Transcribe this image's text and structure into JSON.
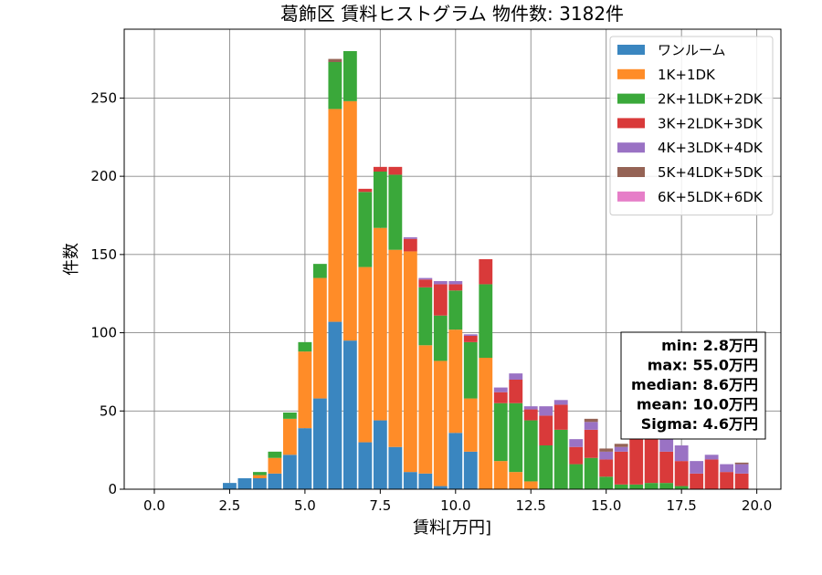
{
  "chart_data": {
    "type": "bar",
    "stacked": true,
    "title": "葛飾区 賃料ヒストグラム 物件数: 3182件",
    "xlabel": "賃料[万円]",
    "ylabel": "件数",
    "xlim": [
      -1.0,
      20.8
    ],
    "ylim": [
      0,
      294
    ],
    "grid": true,
    "legend_position": "top-right",
    "bin_width": 0.5,
    "x_ticks": [
      0.0,
      2.5,
      5.0,
      7.5,
      10.0,
      12.5,
      15.0,
      17.5,
      20.0
    ],
    "x_tick_labels": [
      "0.0",
      "2.5",
      "5.0",
      "7.5",
      "10.0",
      "12.5",
      "15.0",
      "17.5",
      "20.0"
    ],
    "y_ticks": [
      0,
      50,
      100,
      150,
      200,
      250
    ],
    "y_tick_labels": [
      "0",
      "50",
      "100",
      "150",
      "200",
      "250"
    ],
    "x": [
      2.5,
      3.0,
      3.5,
      4.0,
      4.5,
      5.0,
      5.5,
      6.0,
      6.5,
      7.0,
      7.5,
      8.0,
      8.5,
      9.0,
      9.5,
      10.0,
      10.5,
      11.0,
      11.5,
      12.0,
      12.5,
      13.0,
      13.5,
      14.0,
      14.5,
      15.0,
      15.5,
      16.0,
      16.5,
      17.0,
      17.5,
      18.0,
      18.5,
      19.0,
      19.5
    ],
    "series": [
      {
        "name": "ワンルーム",
        "color": "#3a86c0",
        "values": [
          4,
          7,
          7,
          10,
          22,
          39,
          58,
          107,
          95,
          30,
          44,
          27,
          11,
          10,
          2,
          36,
          24,
          0,
          0,
          0,
          0,
          0,
          0,
          0,
          0,
          0,
          0,
          0,
          0,
          0,
          0,
          0,
          0,
          0,
          0
        ]
      },
      {
        "name": "1K+1DK",
        "color": "#ff8c28",
        "values": [
          0,
          0,
          2,
          10,
          23,
          49,
          77,
          136,
          153,
          112,
          123,
          126,
          141,
          82,
          80,
          66,
          34,
          84,
          18,
          11,
          5,
          0,
          0,
          0,
          0,
          0,
          0,
          0,
          0,
          0,
          0,
          0,
          0,
          0,
          0
        ]
      },
      {
        "name": "2K+1LDK+2DK",
        "color": "#3aa83a",
        "values": [
          0,
          0,
          2,
          4,
          4,
          6,
          9,
          30,
          32,
          48,
          36,
          48,
          0,
          37,
          29,
          25,
          36,
          47,
          37,
          44,
          39,
          28,
          38,
          16,
          20,
          8,
          3,
          3,
          4,
          4,
          2,
          0,
          0,
          0,
          0
        ]
      },
      {
        "name": "3K+2LDK+3DK",
        "color": "#d93a3a",
        "values": [
          0,
          0,
          0,
          0,
          0,
          0,
          0,
          0,
          0,
          2,
          3,
          5,
          8,
          5,
          20,
          4,
          4,
          16,
          7,
          15,
          7,
          19,
          16,
          11,
          18,
          11,
          21,
          42,
          47,
          20,
          16,
          10,
          19,
          11,
          10
        ]
      },
      {
        "name": "4K+3LDK+4DK",
        "color": "#9a72c4",
        "values": [
          0,
          0,
          0,
          0,
          0,
          0,
          0,
          0,
          0,
          0,
          0,
          0,
          1,
          1,
          2,
          2,
          1,
          0,
          3,
          4,
          2,
          6,
          3,
          5,
          5,
          5,
          3,
          2,
          2,
          8,
          10,
          8,
          3,
          5,
          6
        ]
      },
      {
        "name": "5K+4LDK+5DK",
        "color": "#956355",
        "values": [
          0,
          0,
          0,
          0,
          0,
          0,
          0,
          2,
          0,
          0,
          0,
          0,
          0,
          0,
          0,
          0,
          0,
          0,
          0,
          0,
          0,
          0,
          0,
          0,
          2,
          2,
          2,
          1,
          1,
          1,
          0,
          0,
          0,
          0,
          1
        ]
      },
      {
        "name": "6K+5LDK+6DK",
        "color": "#e67ec8",
        "values": [
          0,
          0,
          0,
          0,
          0,
          0,
          0,
          0,
          0,
          0,
          0,
          0,
          0,
          0,
          0,
          0,
          0,
          0,
          0,
          0,
          0,
          0,
          0,
          0,
          0,
          0,
          0,
          0,
          0,
          0,
          0,
          0,
          0,
          0,
          0
        ]
      }
    ],
    "stats": [
      "min: 2.8万円",
      "max: 55.0万円",
      "median: 8.6万円",
      "mean: 10.0万円",
      "Sigma: 4.6万円"
    ]
  }
}
